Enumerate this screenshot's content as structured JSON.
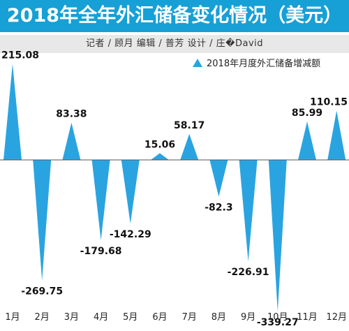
{
  "header": {
    "title": "2018年全年外汇储备变化情况（美元）",
    "credits": "记者 / 顾月    编辑 / 普芳    设计 / 庄�David"
  },
  "colors": {
    "title_background": "#16a0d6",
    "mark_fill": "#2aa4e0",
    "credits_background": "#e8e8e8"
  },
  "chart_data": {
    "type": "bar",
    "legend": "2018年月度外汇储备增减额",
    "legend_position": "top-right",
    "categories": [
      "1月",
      "2月",
      "3月",
      "4月",
      "5月",
      "6月",
      "7月",
      "8月",
      "9月",
      "10月",
      "11月",
      "12月"
    ],
    "values": [
      215.08,
      -269.75,
      83.38,
      -179.68,
      -142.29,
      15.06,
      58.17,
      -82.3,
      -226.91,
      -339.27,
      85.99,
      110.15
    ],
    "value_labels": [
      "215.08",
      "-269.75",
      "83.38",
      "-179.68",
      "-142.29",
      "15.06",
      "58.17",
      "-82.3",
      "-226.91",
      "-339.27",
      "85.99",
      "110.15"
    ],
    "grid": false
  }
}
